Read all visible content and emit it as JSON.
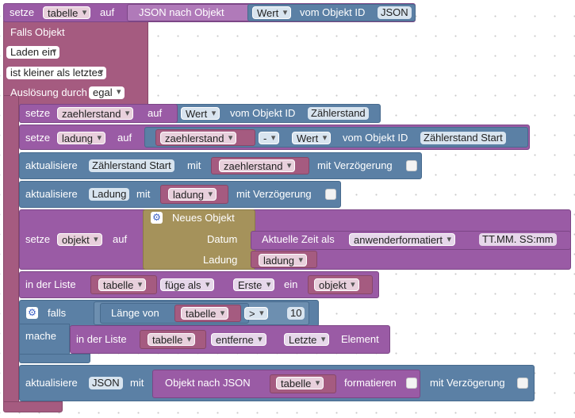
{
  "blocks": {
    "top_set": {
      "set": "setze",
      "var": "tabelle",
      "to": "auf",
      "json_to_obj": "JSON nach Objekt",
      "value": "Wert",
      "from_id": "vom Objekt ID",
      "id": "JSON"
    },
    "trigger": {
      "if_object": "Falls Objekt",
      "load": "Laden ein",
      "compare": "ist kleiner als letztes",
      "trigger_by": "Auslösung durch",
      "trigger_value": "egal"
    },
    "set_zaehler": {
      "set": "setze",
      "var": "zaehlerstand",
      "to": "auf",
      "value": "Wert",
      "from_id": "vom Objekt ID",
      "id": "Zählerstand"
    },
    "set_ladung": {
      "set": "setze",
      "var": "ladung",
      "to": "auf",
      "operand_var": "zaehlerstand",
      "op": "-",
      "value": "Wert",
      "from_id": "vom Objekt ID",
      "id": "Zählerstand Start"
    },
    "update_start": {
      "update": "aktualisiere",
      "id": "Zählerstand Start",
      "with": "mit",
      "var": "zaehlerstand",
      "delay": "mit Verzögerung"
    },
    "update_ladung": {
      "update": "aktualisiere",
      "id": "Ladung",
      "with": "mit",
      "var": "ladung",
      "delay": "mit Verzögerung"
    },
    "set_objekt": {
      "set": "setze",
      "var": "objekt",
      "to": "auf",
      "new_object": "Neues Objekt",
      "key1": "Datum",
      "time": "Aktuelle Zeit als",
      "format": "anwenderformatiert",
      "pattern": "TT.MM. SS:mm",
      "key2": "Ladung",
      "var2": "ladung"
    },
    "list_add": {
      "in_list": "in der Liste",
      "list": "tabelle",
      "action": "füge als",
      "position": "Erste",
      "a": "ein",
      "item": "objekt"
    },
    "if_block": {
      "if": "falls",
      "length_of": "Länge von",
      "list": "tabelle",
      "cmp": ">",
      "number": "10",
      "do": "mache"
    },
    "list_remove": {
      "in_list": "in der Liste",
      "list": "tabelle",
      "action": "entferne",
      "position": "Letzte",
      "element": "Element"
    },
    "update_json": {
      "update": "aktualisiere",
      "id": "JSON",
      "with": "mit",
      "obj_to_json": "Objekt nach JSON",
      "var": "tabelle",
      "format": "formatieren",
      "delay": "mit Verzögerung"
    }
  },
  "colors": {
    "purple": "#9a5ba5",
    "teal": "#5b80a5",
    "maroon": "#a55b80",
    "gold": "#a5925b"
  }
}
